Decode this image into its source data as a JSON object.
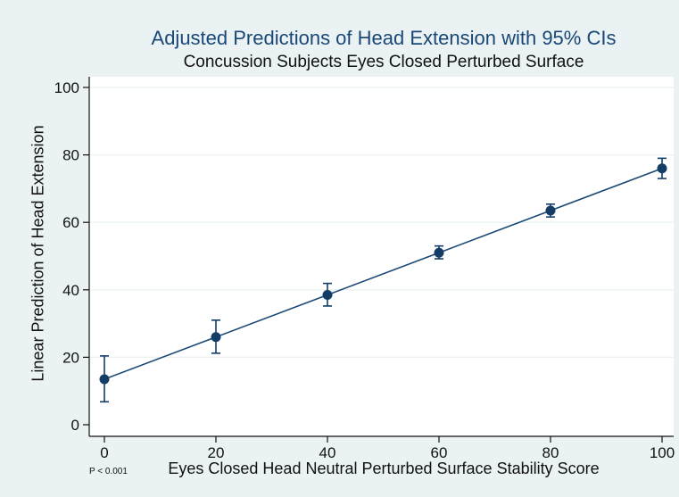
{
  "chart_data": {
    "type": "line",
    "title": "Adjusted Predictions of Head Extension with 95% CIs",
    "subtitle": "Concussion Subjects Eyes Closed Perturbed Surface",
    "xlabel": "Eyes Closed Head Neutral Perturbed Surface Stability Score",
    "ylabel": "Linear Prediction of Head Extension",
    "annotation": "P < 0.001",
    "x_ticks": [
      0,
      20,
      40,
      60,
      80,
      100
    ],
    "y_ticks": [
      0,
      20,
      40,
      60,
      80,
      100
    ],
    "xlim": [
      0,
      100
    ],
    "ylim": [
      0,
      100
    ],
    "grid": "horizontal",
    "x": [
      0,
      20,
      40,
      60,
      80,
      100
    ],
    "series": [
      {
        "values": [
          13.5,
          26,
          38.5,
          51,
          63.5,
          76
        ],
        "ci_low": [
          6.8,
          21.2,
          35.2,
          49.2,
          61.6,
          73
        ],
        "ci_high": [
          20.4,
          31,
          41.9,
          53,
          65.4,
          79
        ]
      }
    ],
    "colors": {
      "line": "#1a4876",
      "marker": "#143d66",
      "plot_bg": "#ffffff",
      "outer_bg": "#eaf2f3",
      "grid": "#eaf2f3"
    }
  }
}
